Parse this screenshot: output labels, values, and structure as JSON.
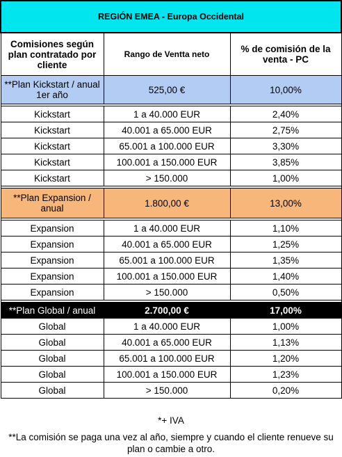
{
  "title": "REGIÓN EMEA - Europa Occidental",
  "header": {
    "col1": "Comisiones según plan contratado por cliente",
    "col2": "Rango  de Ventta neto",
    "col3": "% de comisión de la venta - PC"
  },
  "kickstart": {
    "plan": {
      "name": "**Plan Kickstart / anual 1er año",
      "price": "525,00 €",
      "pct": "10,00%"
    },
    "rows": [
      {
        "name": "Kickstart",
        "range": "1 a 40.000 EUR",
        "pct": "2,40%"
      },
      {
        "name": "Kickstart",
        "range": "40.001 a 65.000 EUR",
        "pct": "2,75%"
      },
      {
        "name": "Kickstart",
        "range": "65.001 a 100.000 EUR",
        "pct": "3,30%"
      },
      {
        "name": "Kickstart",
        "range": "100.001 a 150.000 EUR",
        "pct": "3,85%"
      },
      {
        "name": "Kickstart",
        "range": "> 150.000",
        "pct": "1,00%"
      }
    ]
  },
  "expansion": {
    "plan": {
      "name": "**Plan Expansion / anual",
      "price": "1.800,00 €",
      "pct": "13,00%"
    },
    "rows": [
      {
        "name": "Expansion",
        "range": "1 a 40.000 EUR",
        "pct": "1,10%"
      },
      {
        "name": "Expansion",
        "range": "40.001 a 65.000 EUR",
        "pct": "1,25%"
      },
      {
        "name": "Expansion",
        "range": "65.001 a 100.000 EUR",
        "pct": "1,35%"
      },
      {
        "name": "Expansion",
        "range": "100.001 a 150.000 EUR",
        "pct": "1,40%"
      },
      {
        "name": "Expansion",
        "range": "> 150.000",
        "pct": "0,50%"
      }
    ]
  },
  "global": {
    "plan": {
      "name": "**Plan Global / anual",
      "price": "2.700,00 €",
      "pct": "17,00%"
    },
    "rows": [
      {
        "name": "Global",
        "range": "1 a 40.000 EUR",
        "pct": "1,00%"
      },
      {
        "name": "Global",
        "range": "40.001 a 65.000 EUR",
        "pct": "1,13%"
      },
      {
        "name": "Global",
        "range": "65.001 a 100.000 EUR",
        "pct": "1,20%"
      },
      {
        "name": "Global",
        "range": "100.001 a 150.000 EUR",
        "pct": "1,23%"
      },
      {
        "name": "Global",
        "range": "> 150.000",
        "pct": "0,20%"
      }
    ]
  },
  "notes": {
    "iva": "*+ IVA",
    "payment": "**La comisión se paga una vez al año, siempre y cuando el cliente renueve su plan o cambie a otro."
  },
  "colors": {
    "title_bg": "#00e5ee",
    "kickstart_bg": "#b3ccf3",
    "expansion_bg": "#f8b77a",
    "global_bg": "#000000"
  }
}
